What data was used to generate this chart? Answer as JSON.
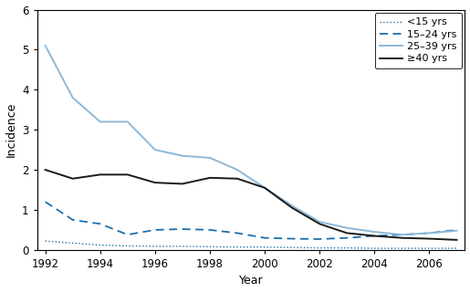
{
  "years": [
    1992,
    1993,
    1994,
    1995,
    1996,
    1997,
    1998,
    1999,
    2000,
    2001,
    2002,
    2003,
    2004,
    2005,
    2006,
    2007
  ],
  "lt15": [
    0.22,
    0.17,
    0.12,
    0.1,
    0.09,
    0.09,
    0.08,
    0.07,
    0.07,
    0.06,
    0.05,
    0.05,
    0.04,
    0.04,
    0.04,
    0.04
  ],
  "age15_24": [
    1.2,
    0.75,
    0.65,
    0.38,
    0.5,
    0.52,
    0.5,
    0.42,
    0.3,
    0.28,
    0.27,
    0.3,
    0.35,
    0.38,
    0.42,
    0.5
  ],
  "age25_39": [
    5.1,
    3.8,
    3.2,
    3.2,
    2.5,
    2.35,
    2.3,
    2.0,
    1.55,
    1.1,
    0.7,
    0.55,
    0.45,
    0.38,
    0.42,
    0.48
  ],
  "ge40": [
    2.0,
    1.78,
    1.88,
    1.88,
    1.68,
    1.65,
    1.8,
    1.78,
    1.55,
    1.05,
    0.65,
    0.42,
    0.35,
    0.3,
    0.28,
    0.25
  ],
  "color_lt15": "#1a6faf",
  "color_15_24": "#1a6faf",
  "color_25_39": "#8db8d8",
  "color_ge40": "#1a1a1a",
  "xlabel": "Year",
  "ylabel": "Incidence",
  "ylim": [
    0,
    6
  ],
  "xlim": [
    1992,
    2007
  ],
  "yticks": [
    0,
    1,
    2,
    3,
    4,
    5,
    6
  ],
  "xticks": [
    1992,
    1994,
    1996,
    1998,
    2000,
    2002,
    2004,
    2006
  ],
  "legend_labels": [
    "<15 yrs",
    "15–24 yrs",
    "25–39 yrs",
    "≥40 yrs"
  ],
  "legend_loc": "upper right"
}
